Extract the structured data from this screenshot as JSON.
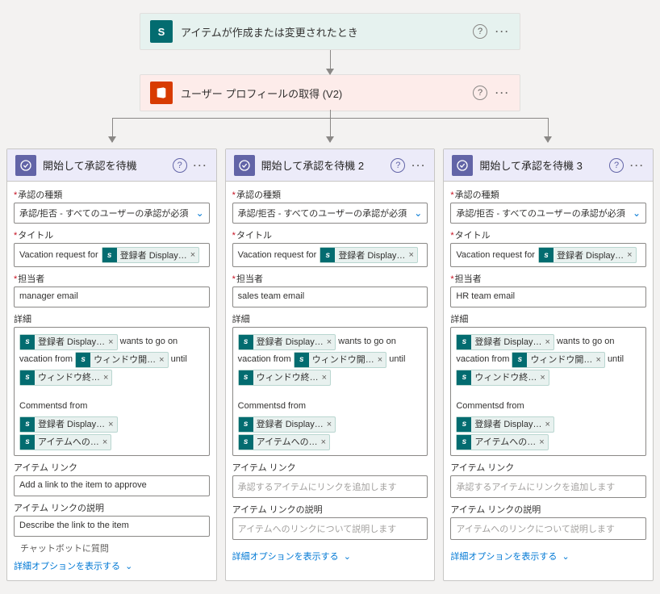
{
  "top": {
    "trigger_title": "アイテムが作成または変更されたとき",
    "profile_title": "ユーザー プロフィールの取得 (V2)"
  },
  "labels": {
    "approval_type": "承認の種類",
    "approval_type_value": "承認/拒否 - すべてのユーザーの承認が必須",
    "title": "タイトル",
    "title_prefix": "Vacation request for",
    "assignee": "担当者",
    "details": "詳細",
    "wants": "wants to go on",
    "vac_from": "vacation from",
    "until": "until",
    "comments_from": "Commentsd from",
    "item_link": "アイテム リンク",
    "item_link_ph": "承認するアイテムにリンクを追加します",
    "item_link_desc": "アイテム リンクの説明",
    "item_link_desc_ph": "アイテムへのリンクについて説明します",
    "item_link_value_1": "Add a link to the item to approve",
    "item_link_desc_value_1": "Describe the link to the item",
    "show_more": "詳細オプションを表示する",
    "chatbot": "チャットボットに質問"
  },
  "tokens": {
    "display": "登録者 Display…",
    "win_open": "ウィンドウ開…",
    "win_close": "ウィンドウ終…",
    "item_to": "アイテムへの…"
  },
  "branches": [
    {
      "title": "開始して承認を待機",
      "assignee": "manager email"
    },
    {
      "title": "開始して承認を待機 2",
      "assignee": "sales team email"
    },
    {
      "title": "開始して承認を待機 3",
      "assignee": "HR team email"
    }
  ]
}
